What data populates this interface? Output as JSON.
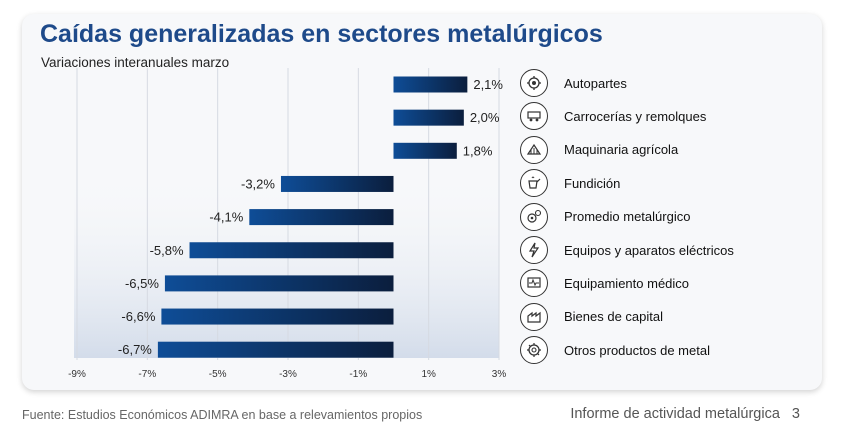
{
  "footer": {
    "source": "Fuente: Estudios Económicos ADIMRA en base a relevamientos propios",
    "report": "Informe de actividad metalúrgica",
    "page": "3"
  },
  "colors": {
    "title": "#1e4a8a",
    "bar_start": "#0e4d97",
    "bar_end": "#0b1e3d"
  },
  "chart_data": {
    "type": "bar",
    "orientation": "horizontal",
    "title": "Caídas generalizadas en sectores metalúrgicos",
    "subtitle": "Variaciones interanuales marzo",
    "xlabel": "",
    "ylabel": "",
    "categories": [
      "Autopartes",
      "Carrocerías y remolques",
      "Maquinaria agrícola",
      "Fundición",
      "Promedio metalúrgico",
      "Equipos y aparatos eléctricos",
      "Equipamiento médico",
      "Bienes de capital",
      "Otros productos de metal"
    ],
    "values": [
      2.1,
      2.0,
      1.8,
      -3.2,
      -4.1,
      -5.8,
      -6.5,
      -6.6,
      -6.7
    ],
    "labels": [
      "2,1%",
      "2,0%",
      "1,8%",
      "-3,2%",
      "-4,1%",
      "-5,8%",
      "-6,5%",
      "-6,6%",
      "-6,7%"
    ],
    "icons": [
      "autoparts-icon",
      "trailer-icon",
      "agricultural-machinery-icon",
      "foundry-icon",
      "gears-icon",
      "electrical-equipment-icon",
      "medical-equipment-icon",
      "capital-goods-icon",
      "metal-products-icon"
    ],
    "xlim": [
      -9,
      3
    ],
    "xticks": [
      -9,
      -7,
      -5,
      -3,
      -1,
      1,
      3
    ],
    "xtick_labels": [
      "-9%",
      "-7%",
      "-5%",
      "-3%",
      "-1%",
      "1%",
      "3%"
    ],
    "grid": true,
    "legend": "right"
  }
}
